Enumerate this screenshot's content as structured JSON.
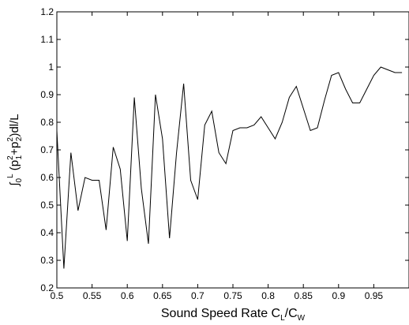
{
  "chart_data": {
    "type": "line",
    "title": "",
    "xlabel": {
      "main": "Sound Speed Rate C",
      "sub1": "L",
      "sep": "/C",
      "sub2": "W"
    },
    "ylabel": {
      "integral": "∫",
      "lower": "0",
      "upper": "L",
      "open": " (p",
      "p1_sup": "2",
      "p1_sub": "1",
      "plus": "+p",
      "p2_sup": "2",
      "p2_sub": "2",
      "tail": ")dl/L"
    },
    "xlim": [
      0.5,
      1.0
    ],
    "ylim": [
      0.2,
      1.2
    ],
    "xticks": [
      "0.5",
      "0.55",
      "0.6",
      "0.65",
      "0.7",
      "0.75",
      "0.8",
      "0.85",
      "0.9",
      "0.95"
    ],
    "xtick_values": [
      0.5,
      0.55,
      0.6,
      0.65,
      0.7,
      0.75,
      0.8,
      0.85,
      0.9,
      0.95
    ],
    "yticks": [
      "0.2",
      "0.3",
      "0.4",
      "0.5",
      "0.6",
      "0.7",
      "0.8",
      "0.9",
      "1",
      "1.1",
      "1.2"
    ],
    "ytick_values": [
      0.2,
      0.3,
      0.4,
      0.5,
      0.6,
      0.7,
      0.8,
      0.9,
      1.0,
      1.1,
      1.2
    ],
    "grid": false,
    "series": [
      {
        "color": "#000000",
        "x": [
          0.5,
          0.51,
          0.52,
          0.53,
          0.54,
          0.55,
          0.56,
          0.57,
          0.58,
          0.59,
          0.6,
          0.61,
          0.62,
          0.63,
          0.64,
          0.65,
          0.66,
          0.67,
          0.68,
          0.69,
          0.7,
          0.71,
          0.72,
          0.73,
          0.74,
          0.75,
          0.76,
          0.77,
          0.78,
          0.79,
          0.8,
          0.81,
          0.82,
          0.83,
          0.84,
          0.85,
          0.86,
          0.87,
          0.88,
          0.89,
          0.9,
          0.91,
          0.92,
          0.93,
          0.94,
          0.95,
          0.96,
          0.97,
          0.98,
          0.99
        ],
        "y": [
          0.77,
          0.27,
          0.69,
          0.48,
          0.6,
          0.59,
          0.59,
          0.41,
          0.71,
          0.63,
          0.37,
          0.89,
          0.56,
          0.36,
          0.9,
          0.74,
          0.38,
          0.69,
          0.94,
          0.59,
          0.52,
          0.79,
          0.84,
          0.69,
          0.65,
          0.77,
          0.78,
          0.78,
          0.79,
          0.82,
          0.78,
          0.74,
          0.8,
          0.89,
          0.93,
          0.85,
          0.77,
          0.78,
          0.88,
          0.97,
          0.98,
          0.92,
          0.87,
          0.87,
          0.92,
          0.97,
          1.0,
          0.99,
          0.98,
          0.98
        ]
      }
    ]
  }
}
